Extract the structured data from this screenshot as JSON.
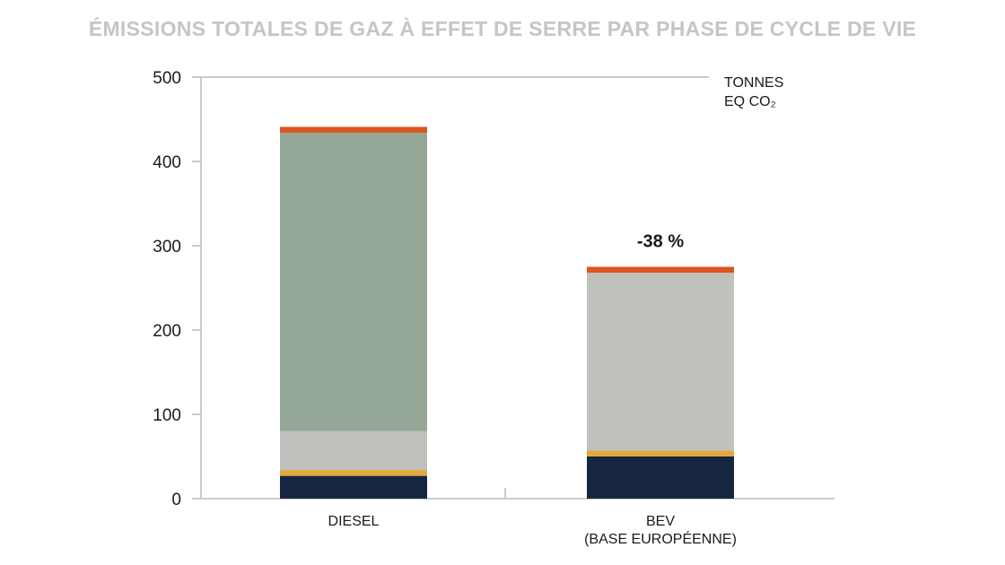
{
  "chart_data": {
    "type": "bar",
    "stacked": true,
    "title": "ÉMISSIONS TOTALES DE GAZ À EFFET DE SERRE PAR PHASE DE CYCLE DE VIE",
    "unit_label": [
      "TONNES",
      "EQ CO₂"
    ],
    "categories": [
      {
        "lines": [
          "DIESEL"
        ]
      },
      {
        "lines": [
          "BEV",
          "(BASE EUROPÉENNE)"
        ]
      }
    ],
    "ylim": [
      0,
      500
    ],
    "yticks": [
      0,
      100,
      200,
      300,
      400,
      500
    ],
    "grid": false,
    "series": [
      {
        "color": "#172640",
        "values": [
          27,
          50
        ]
      },
      {
        "color": "#e2a93c",
        "values": [
          7,
          7
        ]
      },
      {
        "color": "#bfc1bd",
        "values": [
          46,
          211
        ]
      },
      {
        "color": "#94a796",
        "values": [
          354,
          0
        ]
      },
      {
        "color": "#dc5522",
        "values": [
          7,
          7
        ]
      }
    ],
    "annotations": [
      {
        "category_index": 1,
        "text": "-38 %"
      }
    ]
  }
}
